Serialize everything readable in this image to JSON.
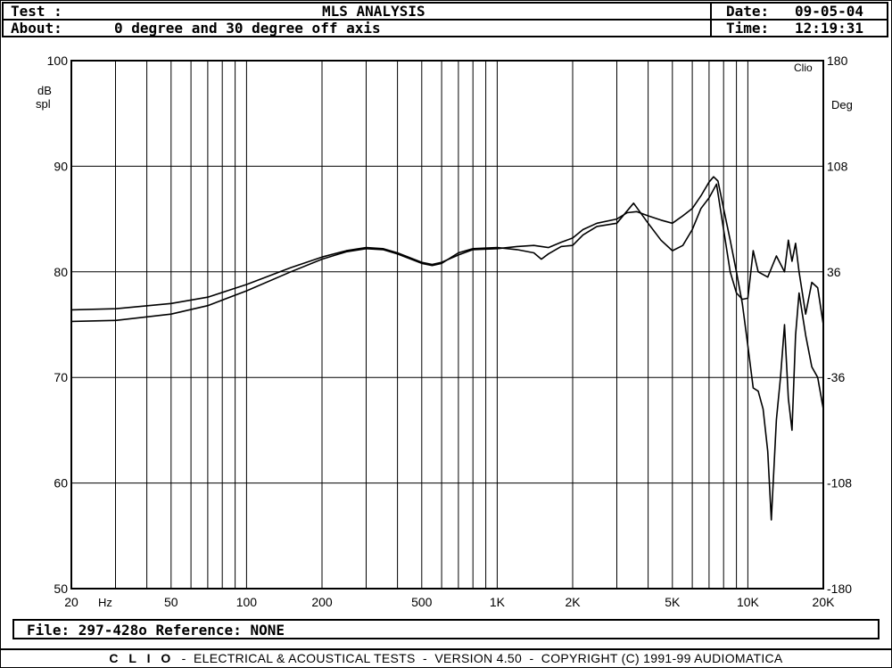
{
  "header": {
    "test_label": "Test :",
    "title": "MLS ANALYSIS",
    "date_label": "Date:",
    "date": "09-05-04",
    "about_label": "About:",
    "about": "0 degree and 30 degree off axis",
    "time_label": "Time:",
    "time": "12:19:31"
  },
  "footer": {
    "file_line": "File: 297-428o Reference: NONE"
  },
  "banner": {
    "brand": "C L I O",
    "text": "-  ELECTRICAL & ACOUSTICAL TESTS  -  VERSION 4.50  -  COPYRIGHT (C) 1991-99 AUDIOMATICA"
  },
  "chart_data": {
    "type": "line",
    "title": "MLS ANALYSIS",
    "watermark": "Clio",
    "y_left_label": [
      "dB",
      "spl"
    ],
    "y_right_label": "Deg",
    "x_unit_label": "Hz",
    "x_scale": "log",
    "xlim": [
      20,
      20000
    ],
    "ylim": [
      50,
      100
    ],
    "y2lim": [
      -180,
      180
    ],
    "grid": true,
    "x_ticks": [
      {
        "v": 20,
        "label": "20"
      },
      {
        "v": 50,
        "label": "50"
      },
      {
        "v": 100,
        "label": "100"
      },
      {
        "v": 200,
        "label": "200"
      },
      {
        "v": 500,
        "label": "500"
      },
      {
        "v": 1000,
        "label": "1K"
      },
      {
        "v": 2000,
        "label": "2K"
      },
      {
        "v": 5000,
        "label": "5K"
      },
      {
        "v": 10000,
        "label": "10K"
      },
      {
        "v": 20000,
        "label": "20K"
      }
    ],
    "y_ticks": [
      {
        "v": 100,
        "label": "100"
      },
      {
        "v": 90,
        "label": "90"
      },
      {
        "v": 80,
        "label": "80"
      },
      {
        "v": 70,
        "label": "70"
      },
      {
        "v": 60,
        "label": "60"
      },
      {
        "v": 50,
        "label": "50"
      }
    ],
    "y2_ticks": [
      {
        "v": 180,
        "label": "180"
      },
      {
        "v": 108,
        "label": "108"
      },
      {
        "v": 36,
        "label": "36"
      },
      {
        "v": -36,
        "label": "-36"
      },
      {
        "v": -108,
        "label": "-108"
      },
      {
        "v": -180,
        "label": "-180"
      }
    ],
    "series": [
      {
        "points": [
          [
            20,
            76.4
          ],
          [
            30,
            76.5
          ],
          [
            50,
            77
          ],
          [
            70,
            77.6
          ],
          [
            100,
            78.8
          ],
          [
            150,
            80.4
          ],
          [
            200,
            81.4
          ],
          [
            250,
            82
          ],
          [
            300,
            82.3
          ],
          [
            350,
            82.2
          ],
          [
            400,
            81.8
          ],
          [
            500,
            80.9
          ],
          [
            550,
            80.7
          ],
          [
            600,
            80.9
          ],
          [
            700,
            81.6
          ],
          [
            800,
            82.1
          ],
          [
            1000,
            82.2
          ],
          [
            1200,
            82.4
          ],
          [
            1400,
            82.5
          ],
          [
            1600,
            82.3
          ],
          [
            1800,
            82.8
          ],
          [
            2000,
            83.2
          ],
          [
            2200,
            84
          ],
          [
            2500,
            84.6
          ],
          [
            3000,
            85
          ],
          [
            3300,
            85.6
          ],
          [
            3600,
            85.7
          ],
          [
            4000,
            85.3
          ],
          [
            4500,
            84.9
          ],
          [
            5000,
            84.6
          ],
          [
            5500,
            85.3
          ],
          [
            6000,
            86
          ],
          [
            6500,
            87.2
          ],
          [
            7000,
            88.5
          ],
          [
            7300,
            89
          ],
          [
            7600,
            88.6
          ],
          [
            8000,
            86
          ],
          [
            8500,
            83
          ],
          [
            9000,
            80
          ],
          [
            9500,
            77
          ],
          [
            10000,
            73
          ],
          [
            10500,
            69
          ],
          [
            11000,
            68.7
          ],
          [
            11500,
            67
          ],
          [
            12000,
            63
          ],
          [
            12400,
            56.5
          ],
          [
            13000,
            66
          ],
          [
            13500,
            70
          ],
          [
            14000,
            75
          ],
          [
            14500,
            68
          ],
          [
            15000,
            65
          ],
          [
            15500,
            74
          ],
          [
            16000,
            78
          ],
          [
            17000,
            74
          ],
          [
            18000,
            71
          ],
          [
            19000,
            70
          ],
          [
            20000,
            67
          ]
        ]
      },
      {
        "points": [
          [
            20,
            75.3
          ],
          [
            30,
            75.4
          ],
          [
            50,
            76
          ],
          [
            70,
            76.8
          ],
          [
            100,
            78.2
          ],
          [
            150,
            80
          ],
          [
            200,
            81.2
          ],
          [
            250,
            81.9
          ],
          [
            300,
            82.2
          ],
          [
            350,
            82.1
          ],
          [
            400,
            81.7
          ],
          [
            500,
            80.8
          ],
          [
            550,
            80.6
          ],
          [
            600,
            80.8
          ],
          [
            700,
            81.8
          ],
          [
            800,
            82.2
          ],
          [
            1000,
            82.3
          ],
          [
            1200,
            82.1
          ],
          [
            1400,
            81.8
          ],
          [
            1500,
            81.2
          ],
          [
            1600,
            81.7
          ],
          [
            1800,
            82.4
          ],
          [
            2000,
            82.5
          ],
          [
            2200,
            83.5
          ],
          [
            2500,
            84.3
          ],
          [
            3000,
            84.6
          ],
          [
            3500,
            86.5
          ],
          [
            4000,
            84.6
          ],
          [
            4500,
            83
          ],
          [
            5000,
            82
          ],
          [
            5500,
            82.5
          ],
          [
            6000,
            84
          ],
          [
            6500,
            86
          ],
          [
            7000,
            87
          ],
          [
            7500,
            88.3
          ],
          [
            8000,
            84
          ],
          [
            8500,
            80
          ],
          [
            9000,
            78
          ],
          [
            9500,
            77.4
          ],
          [
            10000,
            77.5
          ],
          [
            10500,
            82
          ],
          [
            11000,
            80
          ],
          [
            12000,
            79.5
          ],
          [
            13000,
            81.5
          ],
          [
            14000,
            80
          ],
          [
            14500,
            83
          ],
          [
            15000,
            81
          ],
          [
            15500,
            82.7
          ],
          [
            16000,
            80
          ],
          [
            17000,
            76
          ],
          [
            18000,
            79
          ],
          [
            19000,
            78.5
          ],
          [
            20000,
            75
          ]
        ]
      }
    ]
  }
}
